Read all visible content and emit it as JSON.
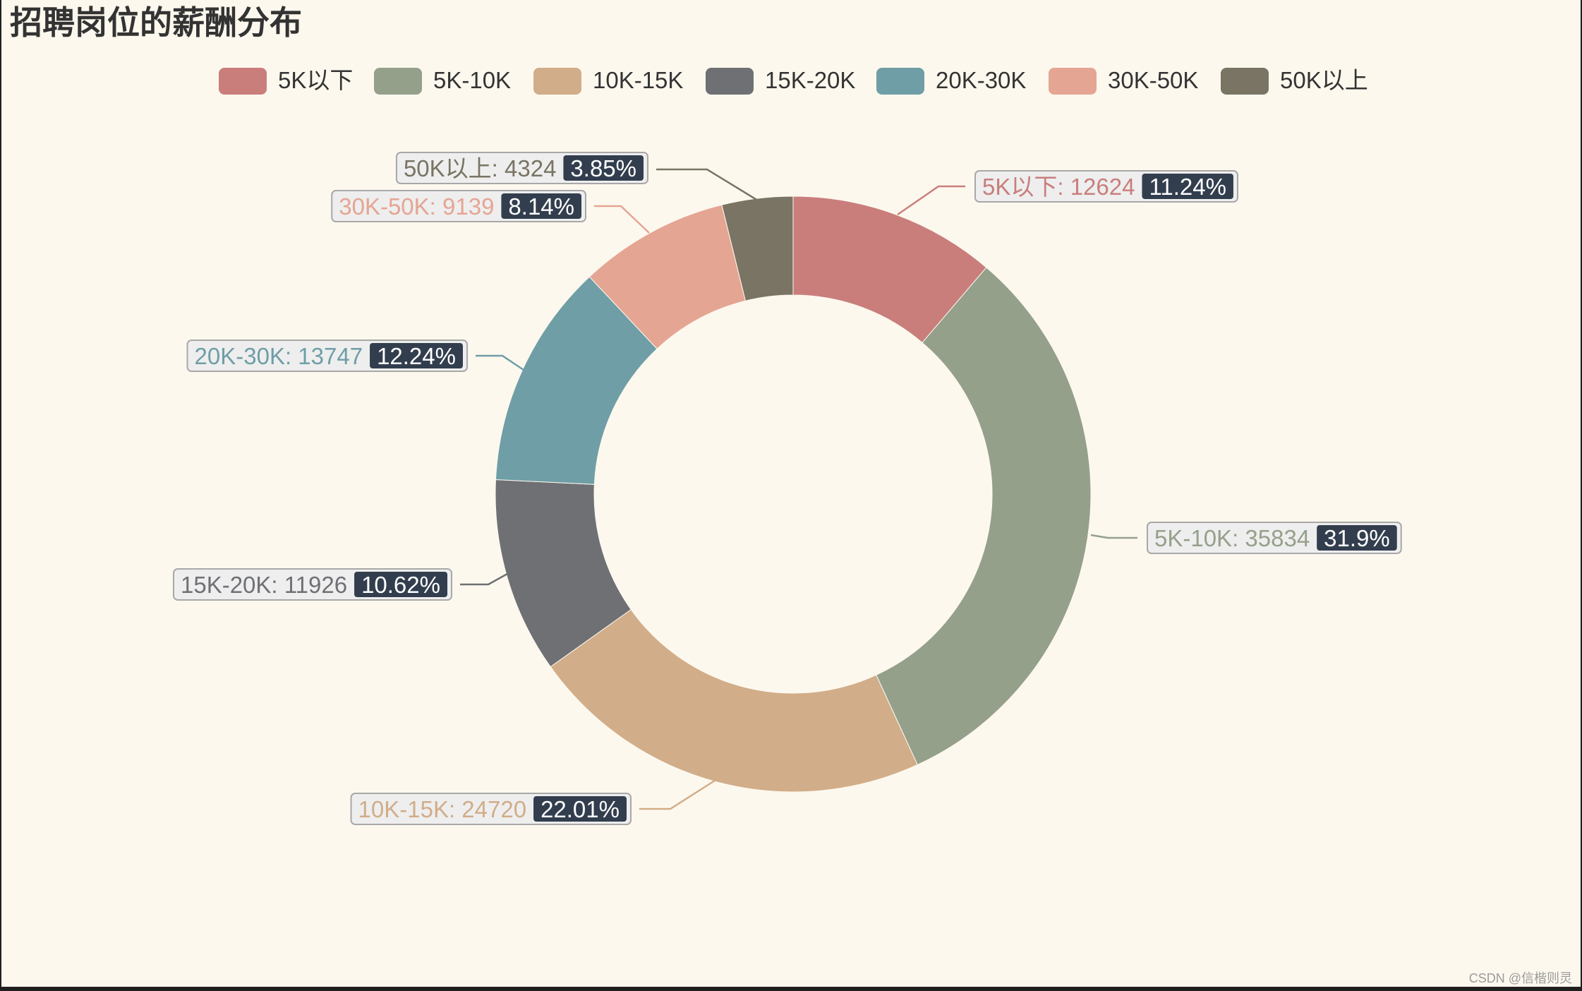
{
  "chart_data": {
    "type": "pie",
    "variant": "donut",
    "title": "招聘岗位的薪酬分布",
    "legend_position": "top",
    "categories": [
      "5K以下",
      "5K-10K",
      "10K-15K",
      "15K-20K",
      "20K-30K",
      "30K-50K",
      "50K以上"
    ],
    "values": [
      12624,
      35834,
      24720,
      11926,
      13747,
      9139,
      4324
    ],
    "percent_labels": [
      "11.24%",
      "31.9%",
      "22.01%",
      "10.62%",
      "12.24%",
      "8.14%",
      "3.85%"
    ],
    "colors": [
      "#c97e7c",
      "#95a08b",
      "#d1ad89",
      "#6e7074",
      "#6f9ea6",
      "#e5a593",
      "#797463"
    ]
  },
  "watermark": "CSDN @信楷则灵",
  "theme": {
    "background": "#fdf8ee",
    "title_color": "#333333",
    "badge_color": "#323e4e",
    "label_bg": "#eeeeee",
    "label_border": "#a8a8a8"
  }
}
